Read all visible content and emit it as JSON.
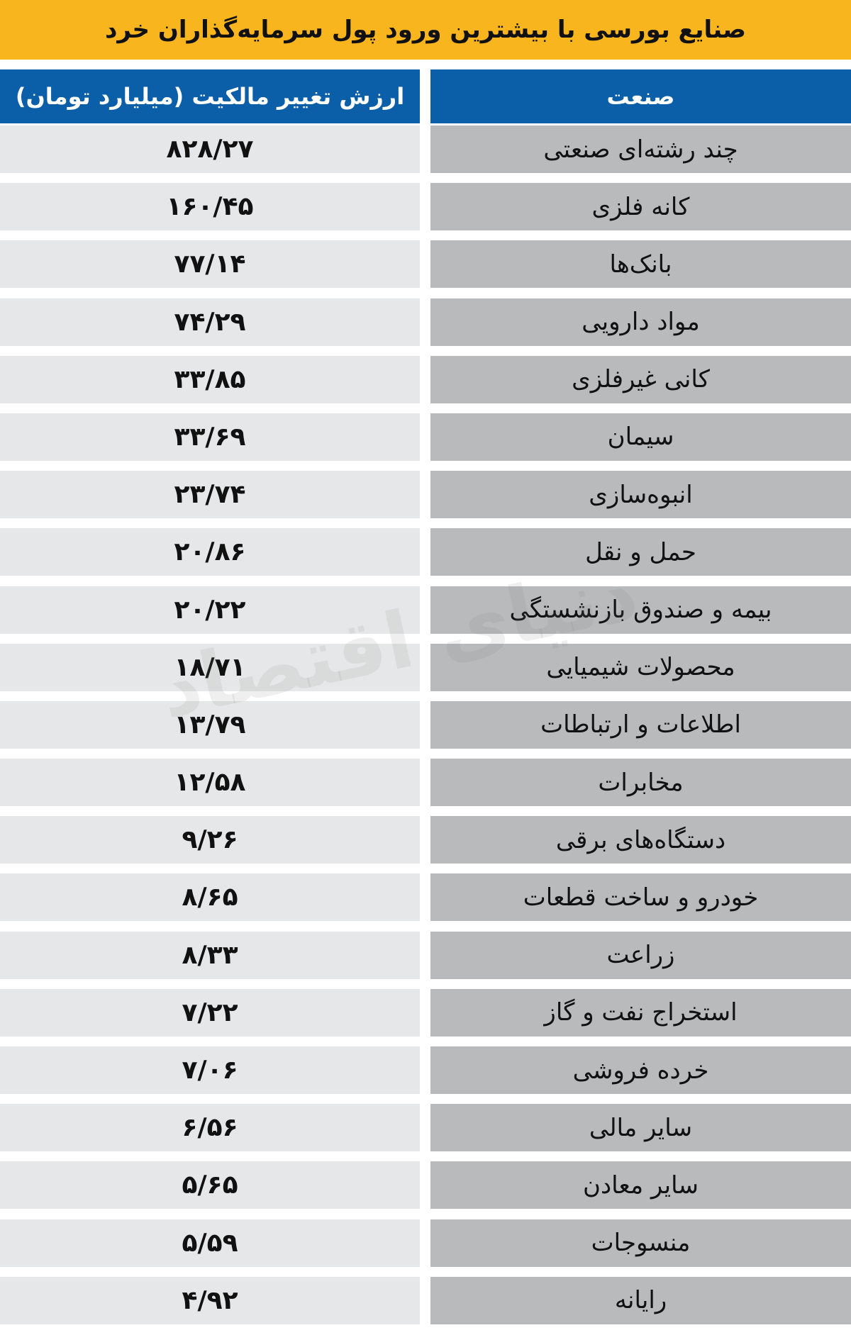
{
  "title": "صنایع بورسی با بیشترین ورود پول سرمایه‌گذاران خرد",
  "headers": {
    "industry": "صنعت",
    "value": "ارزش تغییر مالکیت (میلیارد تومان)"
  },
  "colors": {
    "title_bg": "#f8b51d",
    "header_bg": "#0b5ea8",
    "value_cell": "#e6e7e8",
    "industry_cell": "#b9babc"
  },
  "rows": [
    {
      "industry": "چند رشته‌ای صنعتی",
      "value": "۸۲۸/۲۷"
    },
    {
      "industry": "کانه فلزی",
      "value": "۱۶۰/۴۵"
    },
    {
      "industry": "بانک‌ها",
      "value": "۷۷/۱۴"
    },
    {
      "industry": "مواد دارویی",
      "value": "۷۴/۲۹"
    },
    {
      "industry": "کانی غیرفلزی",
      "value": "۳۳/۸۵"
    },
    {
      "industry": "سیمان",
      "value": "۳۳/۶۹"
    },
    {
      "industry": "انبوه‌سازی",
      "value": "۲۳/۷۴"
    },
    {
      "industry": "حمل و نقل",
      "value": "۲۰/۸۶"
    },
    {
      "industry": "بیمه و صندوق بازنشستگی",
      "value": "۲۰/۲۲"
    },
    {
      "industry": "محصولات شیمیایی",
      "value": "۱۸/۷۱"
    },
    {
      "industry": "اطلاعات و ارتباطات",
      "value": "۱۳/۷۹"
    },
    {
      "industry": "مخابرات",
      "value": "۱۲/۵۸"
    },
    {
      "industry": "دستگاه‌های برقی",
      "value": "۹/۲۶"
    },
    {
      "industry": "خودرو و ساخت قطعات",
      "value": "۸/۶۵"
    },
    {
      "industry": "زراعت",
      "value": "۸/۳۳"
    },
    {
      "industry": "استخراج نفت و گاز",
      "value": "۷/۲۲"
    },
    {
      "industry": "خرده فروشی",
      "value": "۷/۰۶"
    },
    {
      "industry": "سایر مالی",
      "value": "۶/۵۶"
    },
    {
      "industry": "سایر معادن",
      "value": "۵/۶۵"
    },
    {
      "industry": "منسوجات",
      "value": "۵/۵۹"
    },
    {
      "industry": "رایانه",
      "value": "۴/۹۲"
    }
  ],
  "watermark": "دنیای اقتصاد"
}
